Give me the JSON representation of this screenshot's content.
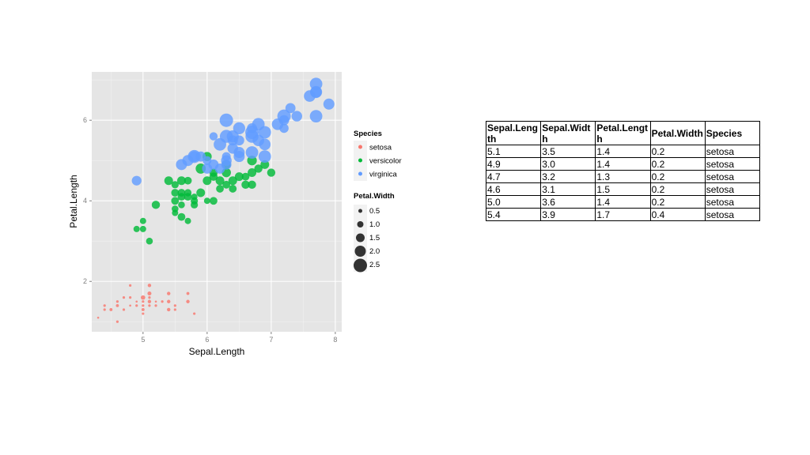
{
  "chart_data": {
    "type": "scatter",
    "xlabel": "Sepal.Length",
    "ylabel": "Petal.Length",
    "xlim": [
      4.2,
      8.1
    ],
    "ylim": [
      0.75,
      7.2
    ],
    "x_ticks": [
      5,
      6,
      7,
      8
    ],
    "y_ticks": [
      2,
      4,
      6
    ],
    "grid": true,
    "legend_placement": "right",
    "legends": {
      "color": {
        "title": "Species",
        "entries": [
          {
            "label": "setosa",
            "color": "#F8766D"
          },
          {
            "label": "versicolor",
            "color": "#00BA38"
          },
          {
            "label": "virginica",
            "color": "#619CFF"
          }
        ]
      },
      "size": {
        "title": "Petal.Width",
        "entries": [
          {
            "label": "0.5",
            "value": 0.5
          },
          {
            "label": "1.0",
            "value": 1.0
          },
          {
            "label": "1.5",
            "value": 1.5
          },
          {
            "label": "2.0",
            "value": 2.0
          },
          {
            "label": "2.5",
            "value": 2.5
          }
        ]
      }
    },
    "series": [
      {
        "name": "setosa",
        "color": "#F8766D",
        "points": [
          {
            "x": 4.3,
            "y": 1.1,
            "size": 0.1
          },
          {
            "x": 4.4,
            "y": 1.3,
            "size": 0.2
          },
          {
            "x": 4.4,
            "y": 1.4,
            "size": 0.2
          },
          {
            "x": 4.5,
            "y": 1.3,
            "size": 0.3
          },
          {
            "x": 4.6,
            "y": 1.0,
            "size": 0.2
          },
          {
            "x": 4.6,
            "y": 1.4,
            "size": 0.3
          },
          {
            "x": 4.6,
            "y": 1.5,
            "size": 0.2
          },
          {
            "x": 4.7,
            "y": 1.3,
            "size": 0.2
          },
          {
            "x": 4.7,
            "y": 1.6,
            "size": 0.2
          },
          {
            "x": 4.8,
            "y": 1.4,
            "size": 0.1
          },
          {
            "x": 4.8,
            "y": 1.6,
            "size": 0.2
          },
          {
            "x": 4.8,
            "y": 1.9,
            "size": 0.2
          },
          {
            "x": 4.9,
            "y": 1.4,
            "size": 0.2
          },
          {
            "x": 4.9,
            "y": 1.5,
            "size": 0.1
          },
          {
            "x": 5.0,
            "y": 1.2,
            "size": 0.2
          },
          {
            "x": 5.0,
            "y": 1.3,
            "size": 0.3
          },
          {
            "x": 5.0,
            "y": 1.4,
            "size": 0.2
          },
          {
            "x": 5.0,
            "y": 1.5,
            "size": 0.2
          },
          {
            "x": 5.0,
            "y": 1.6,
            "size": 0.6
          },
          {
            "x": 5.1,
            "y": 1.4,
            "size": 0.2
          },
          {
            "x": 5.1,
            "y": 1.5,
            "size": 0.4
          },
          {
            "x": 5.1,
            "y": 1.6,
            "size": 0.2
          },
          {
            "x": 5.1,
            "y": 1.7,
            "size": 0.5
          },
          {
            "x": 5.1,
            "y": 1.9,
            "size": 0.4
          },
          {
            "x": 5.2,
            "y": 1.4,
            "size": 0.2
          },
          {
            "x": 5.2,
            "y": 1.5,
            "size": 0.1
          },
          {
            "x": 5.3,
            "y": 1.5,
            "size": 0.2
          },
          {
            "x": 5.4,
            "y": 1.3,
            "size": 0.4
          },
          {
            "x": 5.4,
            "y": 1.5,
            "size": 0.4
          },
          {
            "x": 5.4,
            "y": 1.7,
            "size": 0.4
          },
          {
            "x": 5.5,
            "y": 1.3,
            "size": 0.2
          },
          {
            "x": 5.5,
            "y": 1.4,
            "size": 0.2
          },
          {
            "x": 5.7,
            "y": 1.5,
            "size": 0.4
          },
          {
            "x": 5.7,
            "y": 1.7,
            "size": 0.3
          },
          {
            "x": 5.8,
            "y": 1.2,
            "size": 0.2
          }
        ]
      },
      {
        "name": "versicolor",
        "color": "#00BA38",
        "points": [
          {
            "x": 4.9,
            "y": 3.3,
            "size": 1.0
          },
          {
            "x": 5.0,
            "y": 3.3,
            "size": 1.0
          },
          {
            "x": 5.0,
            "y": 3.5,
            "size": 1.0
          },
          {
            "x": 5.1,
            "y": 3.0,
            "size": 1.1
          },
          {
            "x": 5.2,
            "y": 3.9,
            "size": 1.4
          },
          {
            "x": 5.4,
            "y": 4.5,
            "size": 1.5
          },
          {
            "x": 5.5,
            "y": 4.0,
            "size": 1.3
          },
          {
            "x": 5.5,
            "y": 3.8,
            "size": 1.1
          },
          {
            "x": 5.5,
            "y": 3.7,
            "size": 1.0
          },
          {
            "x": 5.5,
            "y": 4.4,
            "size": 1.2
          },
          {
            "x": 5.5,
            "y": 4.2,
            "size": 1.3
          },
          {
            "x": 5.6,
            "y": 4.5,
            "size": 1.5
          },
          {
            "x": 5.6,
            "y": 3.6,
            "size": 1.3
          },
          {
            "x": 5.6,
            "y": 3.9,
            "size": 1.1
          },
          {
            "x": 5.6,
            "y": 4.1,
            "size": 1.3
          },
          {
            "x": 5.6,
            "y": 4.2,
            "size": 1.3
          },
          {
            "x": 5.7,
            "y": 4.5,
            "size": 1.3
          },
          {
            "x": 5.7,
            "y": 3.5,
            "size": 1.0
          },
          {
            "x": 5.7,
            "y": 4.2,
            "size": 1.2
          },
          {
            "x": 5.7,
            "y": 4.1,
            "size": 1.3
          },
          {
            "x": 5.8,
            "y": 4.1,
            "size": 1.0
          },
          {
            "x": 5.8,
            "y": 4.0,
            "size": 1.2
          },
          {
            "x": 5.8,
            "y": 3.9,
            "size": 1.2
          },
          {
            "x": 5.9,
            "y": 4.8,
            "size": 1.8
          },
          {
            "x": 5.9,
            "y": 4.2,
            "size": 1.5
          },
          {
            "x": 6.0,
            "y": 4.0,
            "size": 1.0
          },
          {
            "x": 6.0,
            "y": 4.5,
            "size": 1.5
          },
          {
            "x": 6.0,
            "y": 5.1,
            "size": 1.6
          },
          {
            "x": 6.1,
            "y": 4.7,
            "size": 1.4
          },
          {
            "x": 6.1,
            "y": 4.0,
            "size": 1.3
          },
          {
            "x": 6.1,
            "y": 4.6,
            "size": 1.4
          },
          {
            "x": 6.2,
            "y": 4.3,
            "size": 1.3
          },
          {
            "x": 6.2,
            "y": 4.5,
            "size": 1.5
          },
          {
            "x": 6.3,
            "y": 4.7,
            "size": 1.6
          },
          {
            "x": 6.3,
            "y": 4.9,
            "size": 1.5
          },
          {
            "x": 6.3,
            "y": 4.4,
            "size": 1.3
          },
          {
            "x": 6.4,
            "y": 4.5,
            "size": 1.5
          },
          {
            "x": 6.4,
            "y": 4.3,
            "size": 1.3
          },
          {
            "x": 6.5,
            "y": 4.6,
            "size": 1.5
          },
          {
            "x": 6.6,
            "y": 4.6,
            "size": 1.3
          },
          {
            "x": 6.6,
            "y": 4.4,
            "size": 1.4
          },
          {
            "x": 6.7,
            "y": 4.7,
            "size": 1.5
          },
          {
            "x": 6.7,
            "y": 4.4,
            "size": 1.4
          },
          {
            "x": 6.7,
            "y": 5.0,
            "size": 1.7
          },
          {
            "x": 6.8,
            "y": 4.8,
            "size": 1.4
          },
          {
            "x": 6.9,
            "y": 4.9,
            "size": 1.5
          },
          {
            "x": 7.0,
            "y": 4.7,
            "size": 1.4
          }
        ]
      },
      {
        "name": "virginica",
        "color": "#619CFF",
        "points": [
          {
            "x": 4.9,
            "y": 4.5,
            "size": 1.7
          },
          {
            "x": 5.6,
            "y": 4.9,
            "size": 2.0
          },
          {
            "x": 5.7,
            "y": 5.0,
            "size": 2.0
          },
          {
            "x": 5.8,
            "y": 5.1,
            "size": 2.4
          },
          {
            "x": 5.8,
            "y": 5.1,
            "size": 1.9
          },
          {
            "x": 5.9,
            "y": 5.1,
            "size": 1.8
          },
          {
            "x": 6.0,
            "y": 4.8,
            "size": 1.8
          },
          {
            "x": 6.0,
            "y": 5.0,
            "size": 1.5
          },
          {
            "x": 6.1,
            "y": 4.9,
            "size": 1.8
          },
          {
            "x": 6.1,
            "y": 5.6,
            "size": 1.4
          },
          {
            "x": 6.2,
            "y": 4.8,
            "size": 1.8
          },
          {
            "x": 6.2,
            "y": 5.4,
            "size": 2.3
          },
          {
            "x": 6.3,
            "y": 6.0,
            "size": 2.5
          },
          {
            "x": 6.3,
            "y": 5.1,
            "size": 1.5
          },
          {
            "x": 6.3,
            "y": 5.6,
            "size": 2.4
          },
          {
            "x": 6.3,
            "y": 4.9,
            "size": 1.8
          },
          {
            "x": 6.3,
            "y": 5.0,
            "size": 1.9
          },
          {
            "x": 6.4,
            "y": 5.3,
            "size": 1.9
          },
          {
            "x": 6.4,
            "y": 5.5,
            "size": 1.8
          },
          {
            "x": 6.4,
            "y": 5.6,
            "size": 2.2
          },
          {
            "x": 6.5,
            "y": 5.8,
            "size": 2.2
          },
          {
            "x": 6.5,
            "y": 5.5,
            "size": 1.8
          },
          {
            "x": 6.5,
            "y": 5.1,
            "size": 2.0
          },
          {
            "x": 6.5,
            "y": 5.2,
            "size": 2.0
          },
          {
            "x": 6.7,
            "y": 5.8,
            "size": 1.8
          },
          {
            "x": 6.7,
            "y": 5.7,
            "size": 2.5
          },
          {
            "x": 6.7,
            "y": 5.6,
            "size": 2.4
          },
          {
            "x": 6.7,
            "y": 5.2,
            "size": 2.3
          },
          {
            "x": 6.8,
            "y": 5.5,
            "size": 2.1
          },
          {
            "x": 6.8,
            "y": 5.9,
            "size": 2.3
          },
          {
            "x": 6.9,
            "y": 5.7,
            "size": 2.3
          },
          {
            "x": 6.9,
            "y": 5.4,
            "size": 2.1
          },
          {
            "x": 6.9,
            "y": 5.1,
            "size": 2.3
          },
          {
            "x": 7.1,
            "y": 5.9,
            "size": 2.1
          },
          {
            "x": 7.2,
            "y": 6.1,
            "size": 2.5
          },
          {
            "x": 7.2,
            "y": 6.0,
            "size": 1.8
          },
          {
            "x": 7.2,
            "y": 5.8,
            "size": 1.6
          },
          {
            "x": 7.3,
            "y": 6.3,
            "size": 1.8
          },
          {
            "x": 7.4,
            "y": 6.1,
            "size": 1.9
          },
          {
            "x": 7.6,
            "y": 6.6,
            "size": 2.1
          },
          {
            "x": 7.7,
            "y": 6.7,
            "size": 2.2
          },
          {
            "x": 7.7,
            "y": 6.9,
            "size": 2.3
          },
          {
            "x": 7.7,
            "y": 6.7,
            "size": 2.0
          },
          {
            "x": 7.7,
            "y": 6.1,
            "size": 2.3
          },
          {
            "x": 7.9,
            "y": 6.4,
            "size": 2.0
          }
        ]
      }
    ]
  },
  "table": {
    "headers": [
      "Sepal.Length",
      "Sepal.Width",
      "Petal.Length",
      "Petal.Width",
      "Species"
    ],
    "rows": [
      [
        "5.1",
        "3.5",
        "1.4",
        "0.2",
        "setosa"
      ],
      [
        "4.9",
        "3.0",
        "1.4",
        "0.2",
        "setosa"
      ],
      [
        "4.7",
        "3.2",
        "1.3",
        "0.2",
        "setosa"
      ],
      [
        "4.6",
        "3.1",
        "1.5",
        "0.2",
        "setosa"
      ],
      [
        "5.0",
        "3.6",
        "1.4",
        "0.2",
        "setosa"
      ],
      [
        "5.4",
        "3.9",
        "1.7",
        "0.4",
        "setosa"
      ]
    ]
  }
}
